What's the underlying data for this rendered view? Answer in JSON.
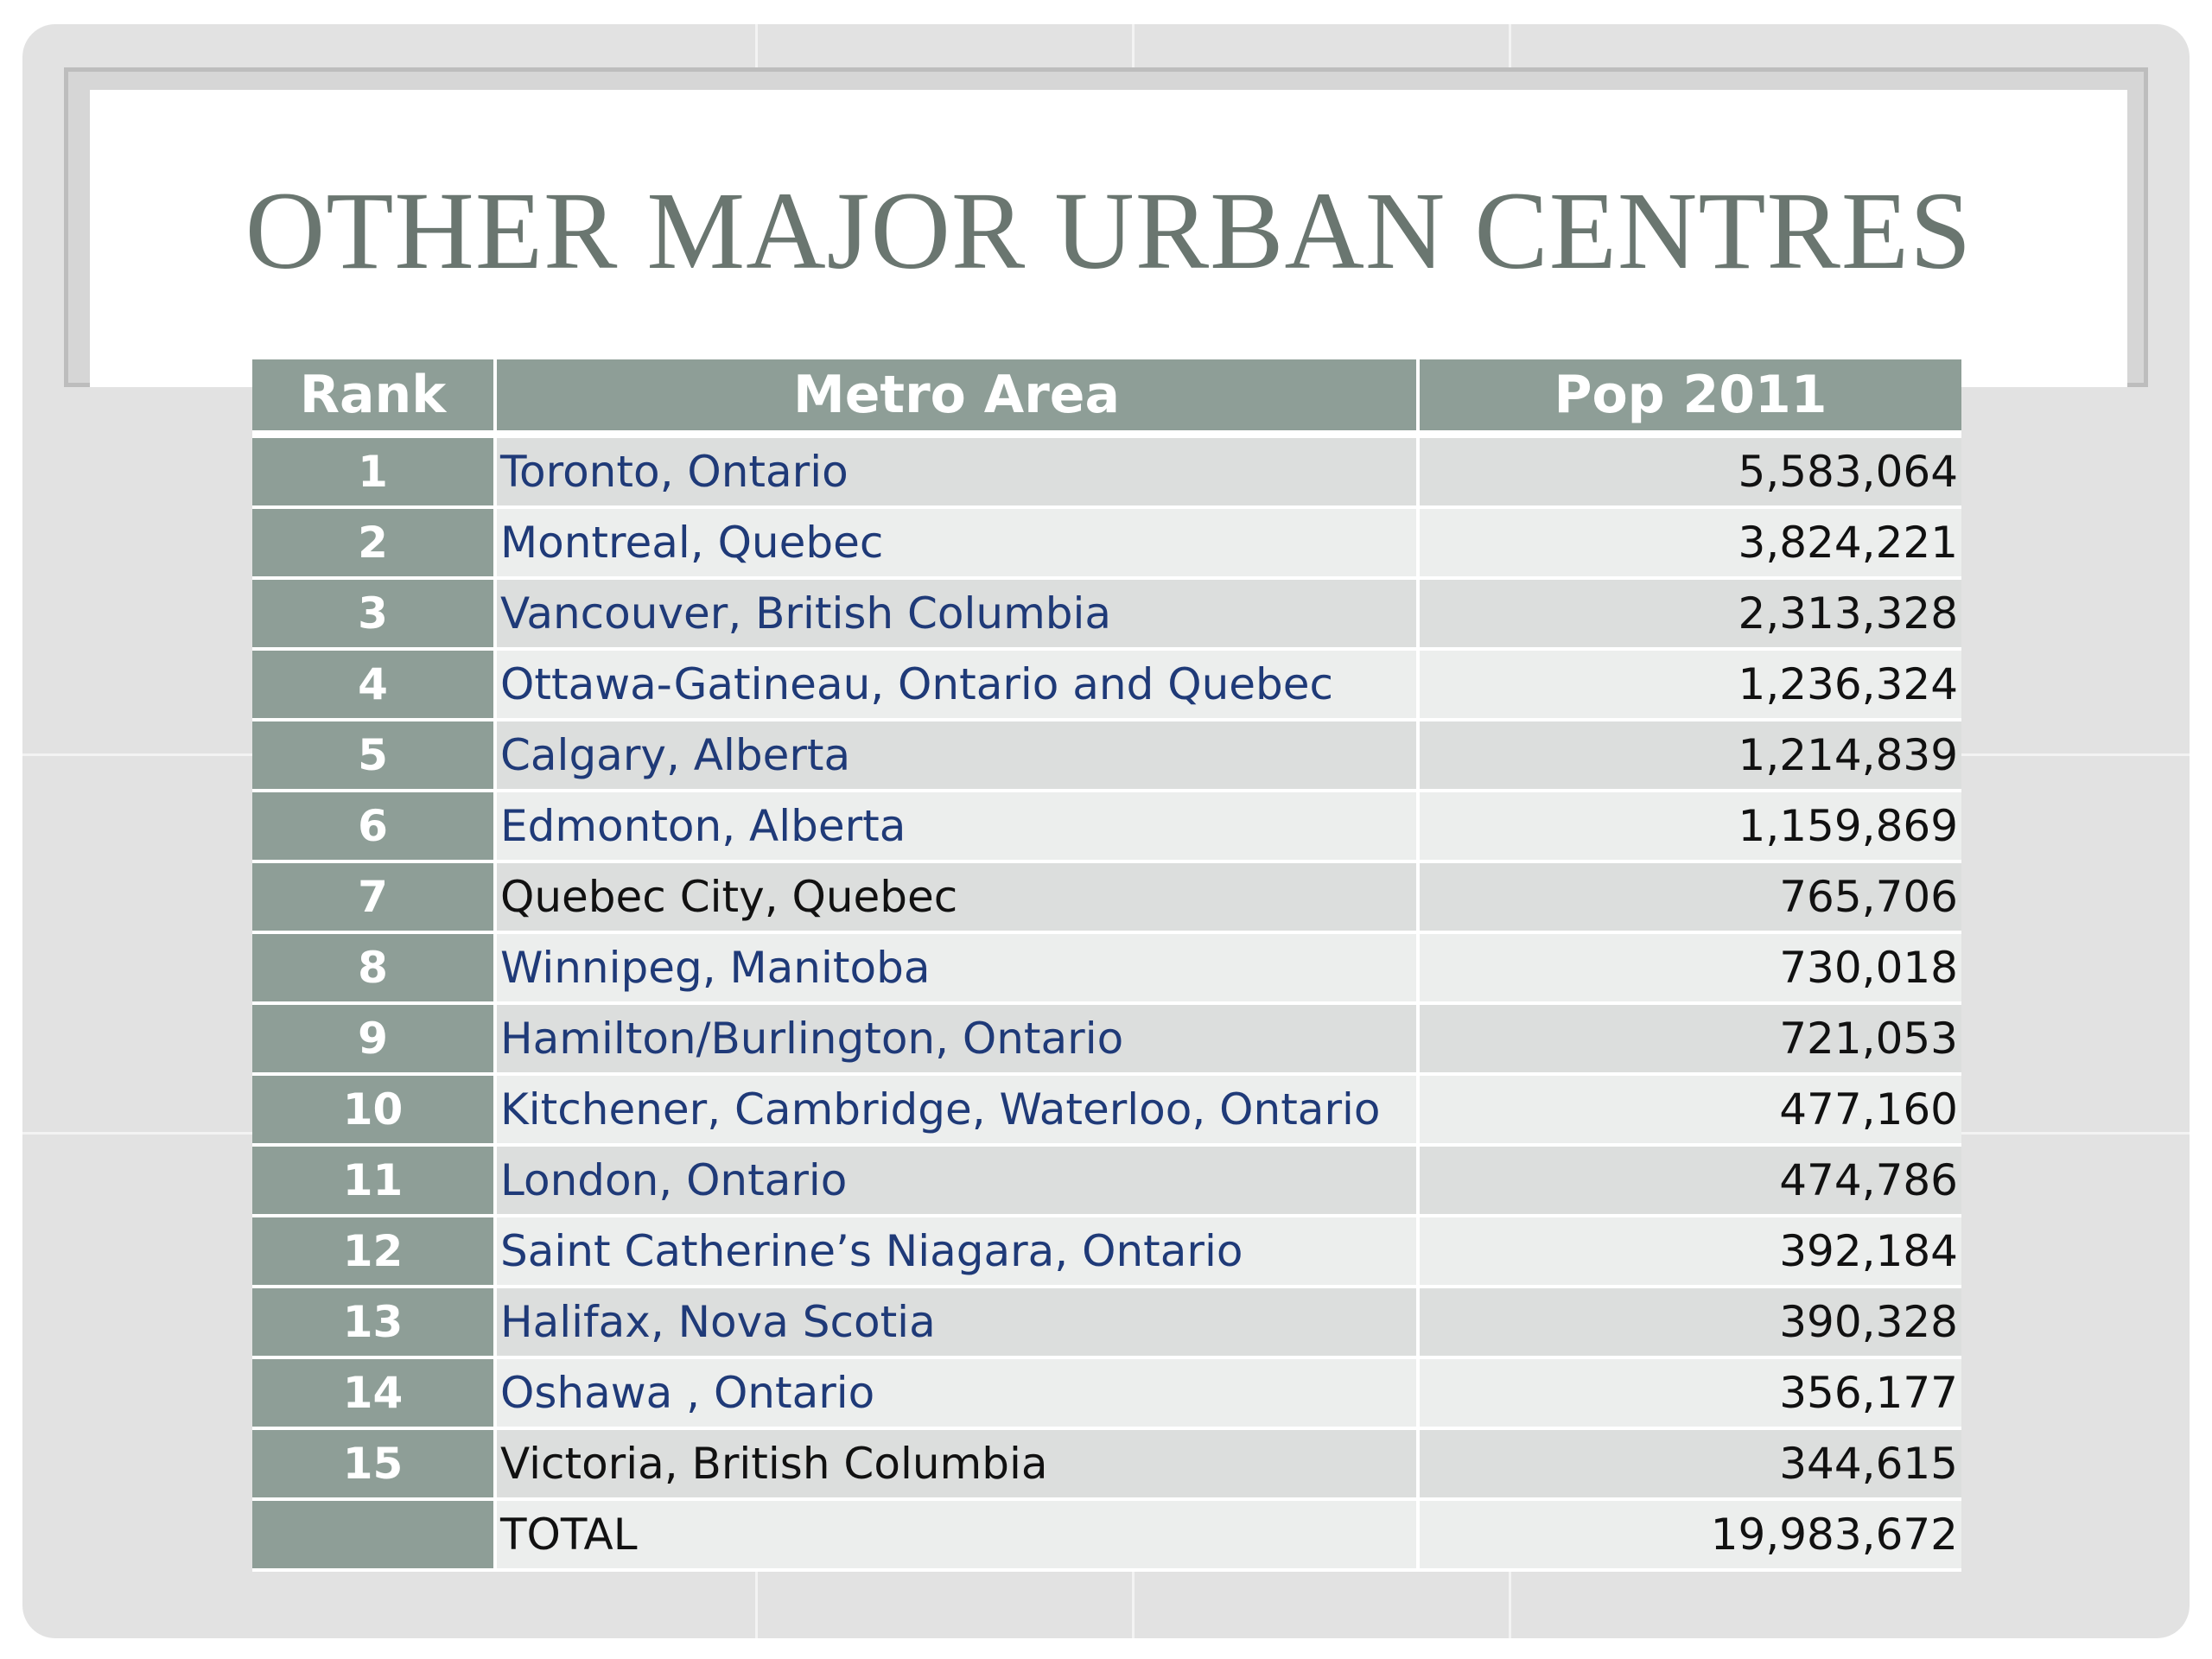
{
  "slide": {
    "title": "OTHER MAJOR URBAN CENTRES"
  },
  "table": {
    "headers": {
      "rank": "Rank",
      "metro_area": "Metro Area",
      "pop": "Pop 2011"
    },
    "rows": [
      {
        "rank": "1",
        "area": "Toronto, Ontario",
        "pop": "5,583,064"
      },
      {
        "rank": "2",
        "area": "Montreal, Quebec",
        "pop": "3,824,221"
      },
      {
        "rank": "3",
        "area": "Vancouver, British Columbia",
        "pop": "2,313,328"
      },
      {
        "rank": "4",
        "area": "Ottawa-Gatineau, Ontario and Quebec",
        "pop": "1,236,324"
      },
      {
        "rank": "5",
        "area": "Calgary, Alberta",
        "pop": "1,214,839"
      },
      {
        "rank": "6",
        "area": "Edmonton, Alberta",
        "pop": "1,159,869"
      },
      {
        "rank": "7",
        "area": "Quebec City, Quebec",
        "pop": "765,706"
      },
      {
        "rank": "8",
        "area": "Winnipeg, Manitoba",
        "pop": "730,018"
      },
      {
        "rank": "9",
        "area": "Hamilton/Burlington, Ontario",
        "pop": "721,053"
      },
      {
        "rank": "10",
        "area": "Kitchener, Cambridge, Waterloo, Ontario",
        "pop": "477,160"
      },
      {
        "rank": "11",
        "area": "London, Ontario",
        "pop": "474,786"
      },
      {
        "rank": "12",
        "area": "Saint Catherine’s Niagara, Ontario",
        "pop": "392,184"
      },
      {
        "rank": "13",
        "area": "Halifax, Nova Scotia",
        "pop": "390,328"
      },
      {
        "rank": "14",
        "area": "Oshawa , Ontario",
        "pop": "356,177"
      },
      {
        "rank": "15",
        "area": "Victoria, British Columbia",
        "pop": "344,615"
      },
      {
        "rank": "",
        "area": "TOTAL",
        "pop": "19,983,672"
      }
    ]
  },
  "colors": {
    "title": "#6a7670",
    "header_fill": "#8e9e97",
    "link_text": "#1f3a78",
    "row_odd": "#dcdedd",
    "row_even": "#eceeed"
  }
}
